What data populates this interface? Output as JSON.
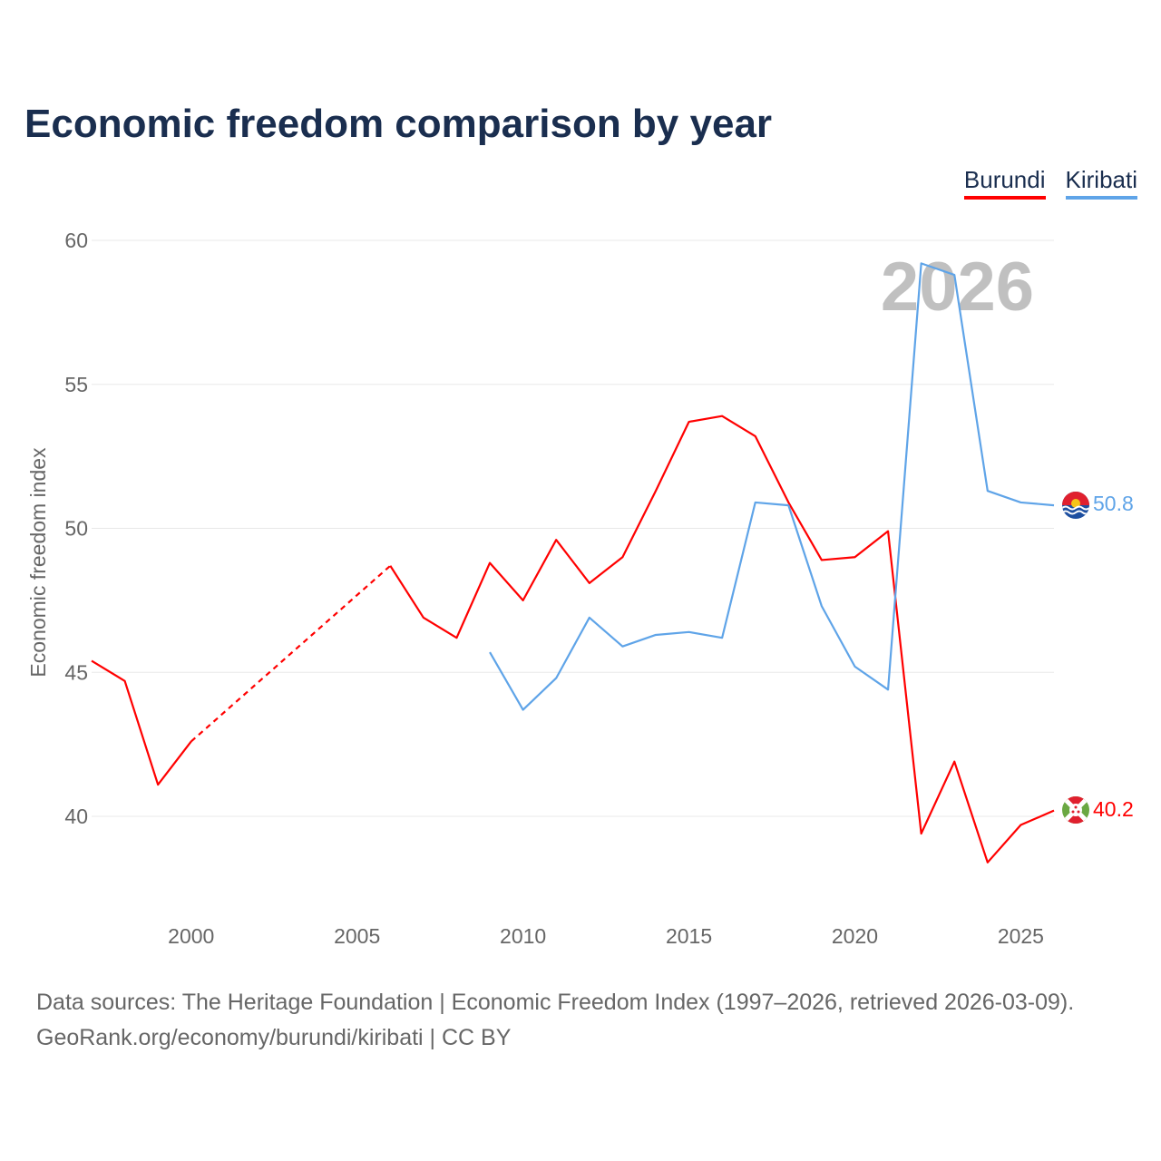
{
  "chart_data": {
    "type": "line",
    "title": "Economic freedom comparison by year",
    "ylabel": "Economic freedom index",
    "xlabel": "",
    "xlim": [
      1997,
      2026
    ],
    "ylim": [
      40,
      60
    ],
    "y_ticks": [
      40,
      45,
      50,
      55,
      60
    ],
    "x_ticks": [
      2000,
      2005,
      2010,
      2015,
      2020,
      2025
    ],
    "grid": true,
    "legend_position": "top-right",
    "watermark_year": "2026",
    "x": [
      1997,
      1998,
      1999,
      2000,
      2001,
      2002,
      2003,
      2004,
      2005,
      2006,
      2007,
      2008,
      2009,
      2010,
      2011,
      2012,
      2013,
      2014,
      2015,
      2016,
      2017,
      2018,
      2019,
      2020,
      2021,
      2022,
      2023,
      2024,
      2025,
      2026
    ],
    "series": [
      {
        "name": "Burundi",
        "color": "#ff0000",
        "end_label": "40.2",
        "values": [
          45.4,
          44.7,
          41.1,
          42.6,
          null,
          null,
          null,
          null,
          null,
          48.7,
          46.9,
          46.2,
          48.8,
          47.5,
          49.6,
          48.1,
          49.0,
          51.3,
          53.7,
          53.9,
          53.2,
          50.9,
          48.9,
          49.0,
          49.9,
          39.4,
          41.9,
          38.4,
          39.7,
          40.2
        ]
      },
      {
        "name": "Kiribati",
        "color": "#5fa4e8",
        "end_label": "50.8",
        "values": [
          null,
          null,
          null,
          null,
          null,
          null,
          null,
          null,
          null,
          null,
          null,
          null,
          45.7,
          43.7,
          44.8,
          46.9,
          45.9,
          46.3,
          46.4,
          46.2,
          50.9,
          50.8,
          47.3,
          45.2,
          44.4,
          59.2,
          58.8,
          51.3,
          50.9,
          50.8
        ]
      }
    ]
  },
  "footer": {
    "line1": "Data sources: The Heritage Foundation | Economic Freedom Index (1997–2026, retrieved 2026-03-09).",
    "line2": "GeoRank.org/economy/burundi/kiribati | CC BY"
  }
}
